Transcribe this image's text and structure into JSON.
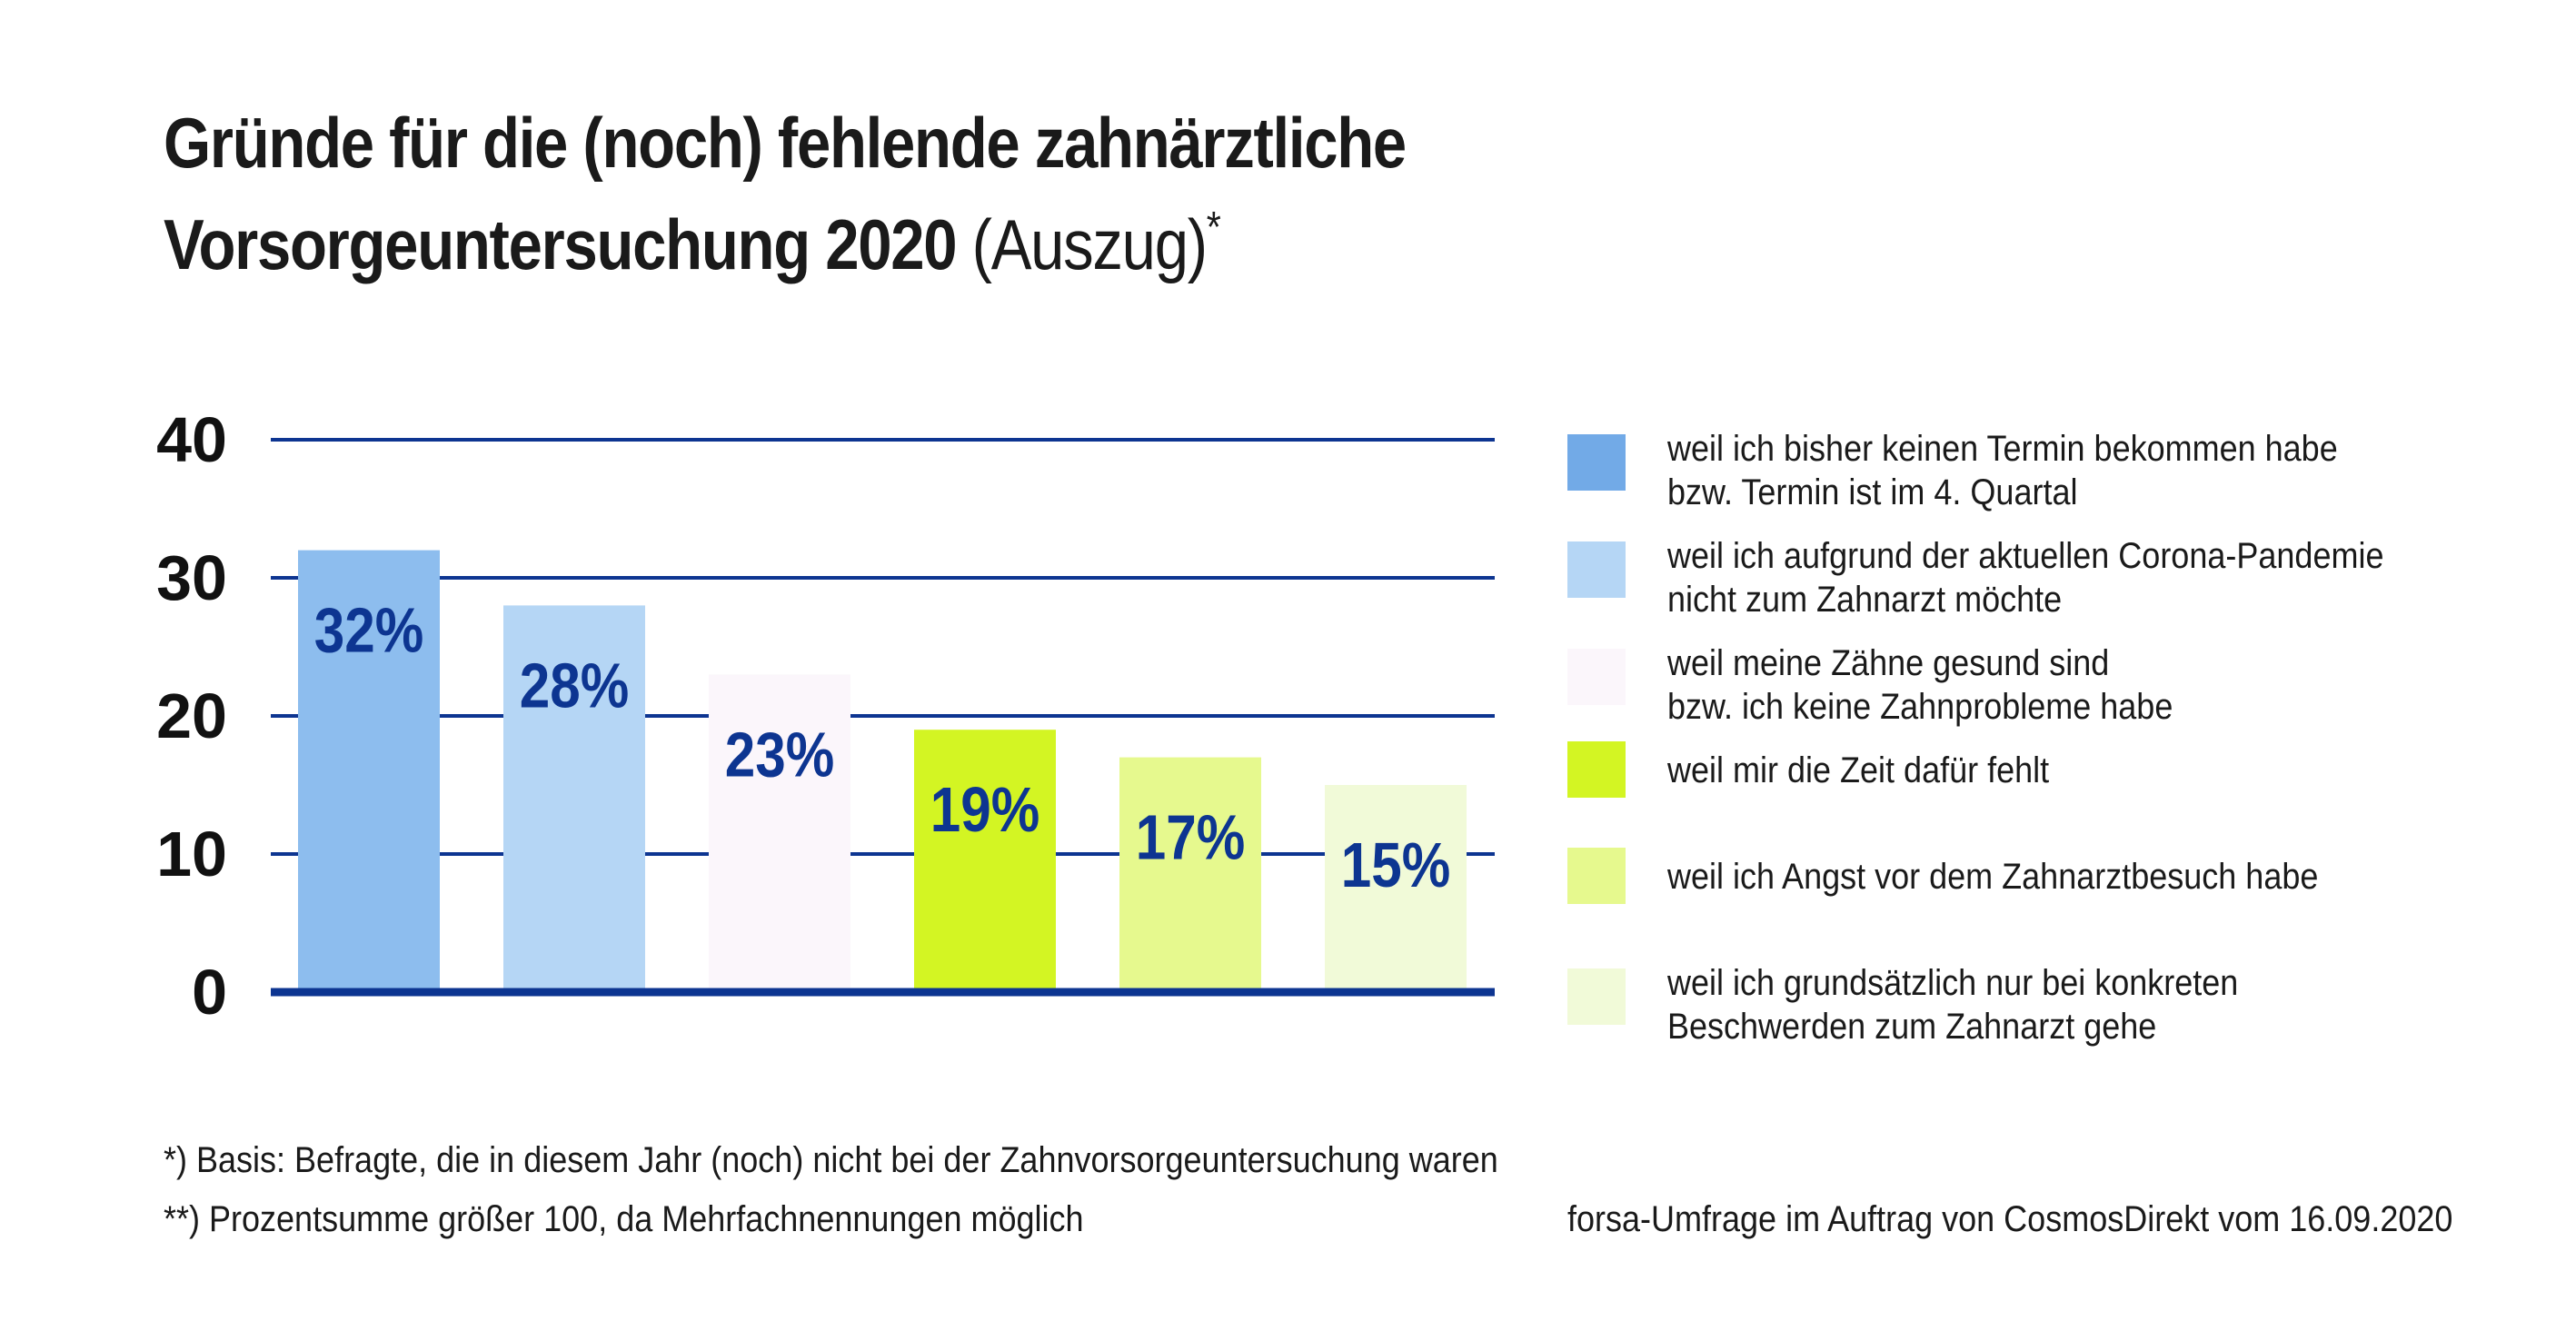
{
  "title": {
    "line1": "Gründe für die (noch) fehlende zahnärztliche",
    "line2_bold": "Vorsorgeuntersuchung 2020",
    "line2_regular": " (Auszug)",
    "asterisk": "*"
  },
  "chart_data": {
    "type": "bar",
    "ylim": [
      0,
      40
    ],
    "yticks": [
      "0",
      "10",
      "20",
      "30",
      "40"
    ],
    "grid": true,
    "legend_placement": "right",
    "series": [
      {
        "name": "weil ich bisher keinen Termin bekommen habe bzw. Termin ist im 4. Quartal",
        "value": 32,
        "label": "32%",
        "color": "#8dbdee"
      },
      {
        "name": "weil ich aufgrund der aktuellen Corona-Pandemie nicht zum Zahnarzt möchte",
        "value": 28,
        "label": "28%",
        "color": "#b5d6f5"
      },
      {
        "name": "weil meine Zähne gesund sind bzw. ich keine Zahnprobleme habe",
        "value": 23,
        "label": "23%",
        "color": "#fbf6fb"
      },
      {
        "name": "weil mir die Zeit dafür fehlt",
        "value": 19,
        "label": "19%",
        "color": "#d3f523"
      },
      {
        "name": "weil ich Angst vor dem Zahnarztbesuch habe",
        "value": 17,
        "label": "17%",
        "color": "#e6f98e"
      },
      {
        "name": "weil ich grundsätzlich nur bei konkreten Beschwerden zum Zahnarzt gehe",
        "value": 15,
        "label": "15%",
        "color": "#f1fad8"
      }
    ]
  },
  "legend": [
    {
      "line1": "weil ich bisher keinen Termin bekommen habe",
      "line2": "bzw. Termin ist im 4. Quartal",
      "color": "#72aae7"
    },
    {
      "line1": "weil ich aufgrund der aktuellen Corona-Pandemie",
      "line2": "nicht zum Zahnarzt möchte",
      "color": "#b5d6f5"
    },
    {
      "line1": "weil meine Zähne gesund sind",
      "line2": "bzw. ich keine Zahnprobleme habe",
      "color": "#fbf6fb"
    },
    {
      "line1": "weil mir die Zeit dafür fehlt",
      "line2": "",
      "color": "#d3f523"
    },
    {
      "line1": "weil ich Angst vor dem Zahnarztbesuch habe",
      "line2": "",
      "color": "#e6f98e"
    },
    {
      "line1": "weil ich grundsätzlich nur bei konkreten",
      "line2": "Beschwerden zum Zahnarzt gehe",
      "color": "#f1fad8"
    }
  ],
  "footnotes": {
    "note1": "*) Basis: Befragte, die in diesem Jahr (noch) nicht bei der Zahnvorsorgeuntersuchung waren",
    "note2": "**) Prozentsumme größer 100, da Mehrfachnennungen möglich",
    "source": "forsa-Umfrage im Auftrag von CosmosDirekt vom 16.09.2020"
  },
  "colors": {
    "gridline": "#0d3591",
    "axis": "#0d3591",
    "bar_label": "#0d3591"
  }
}
